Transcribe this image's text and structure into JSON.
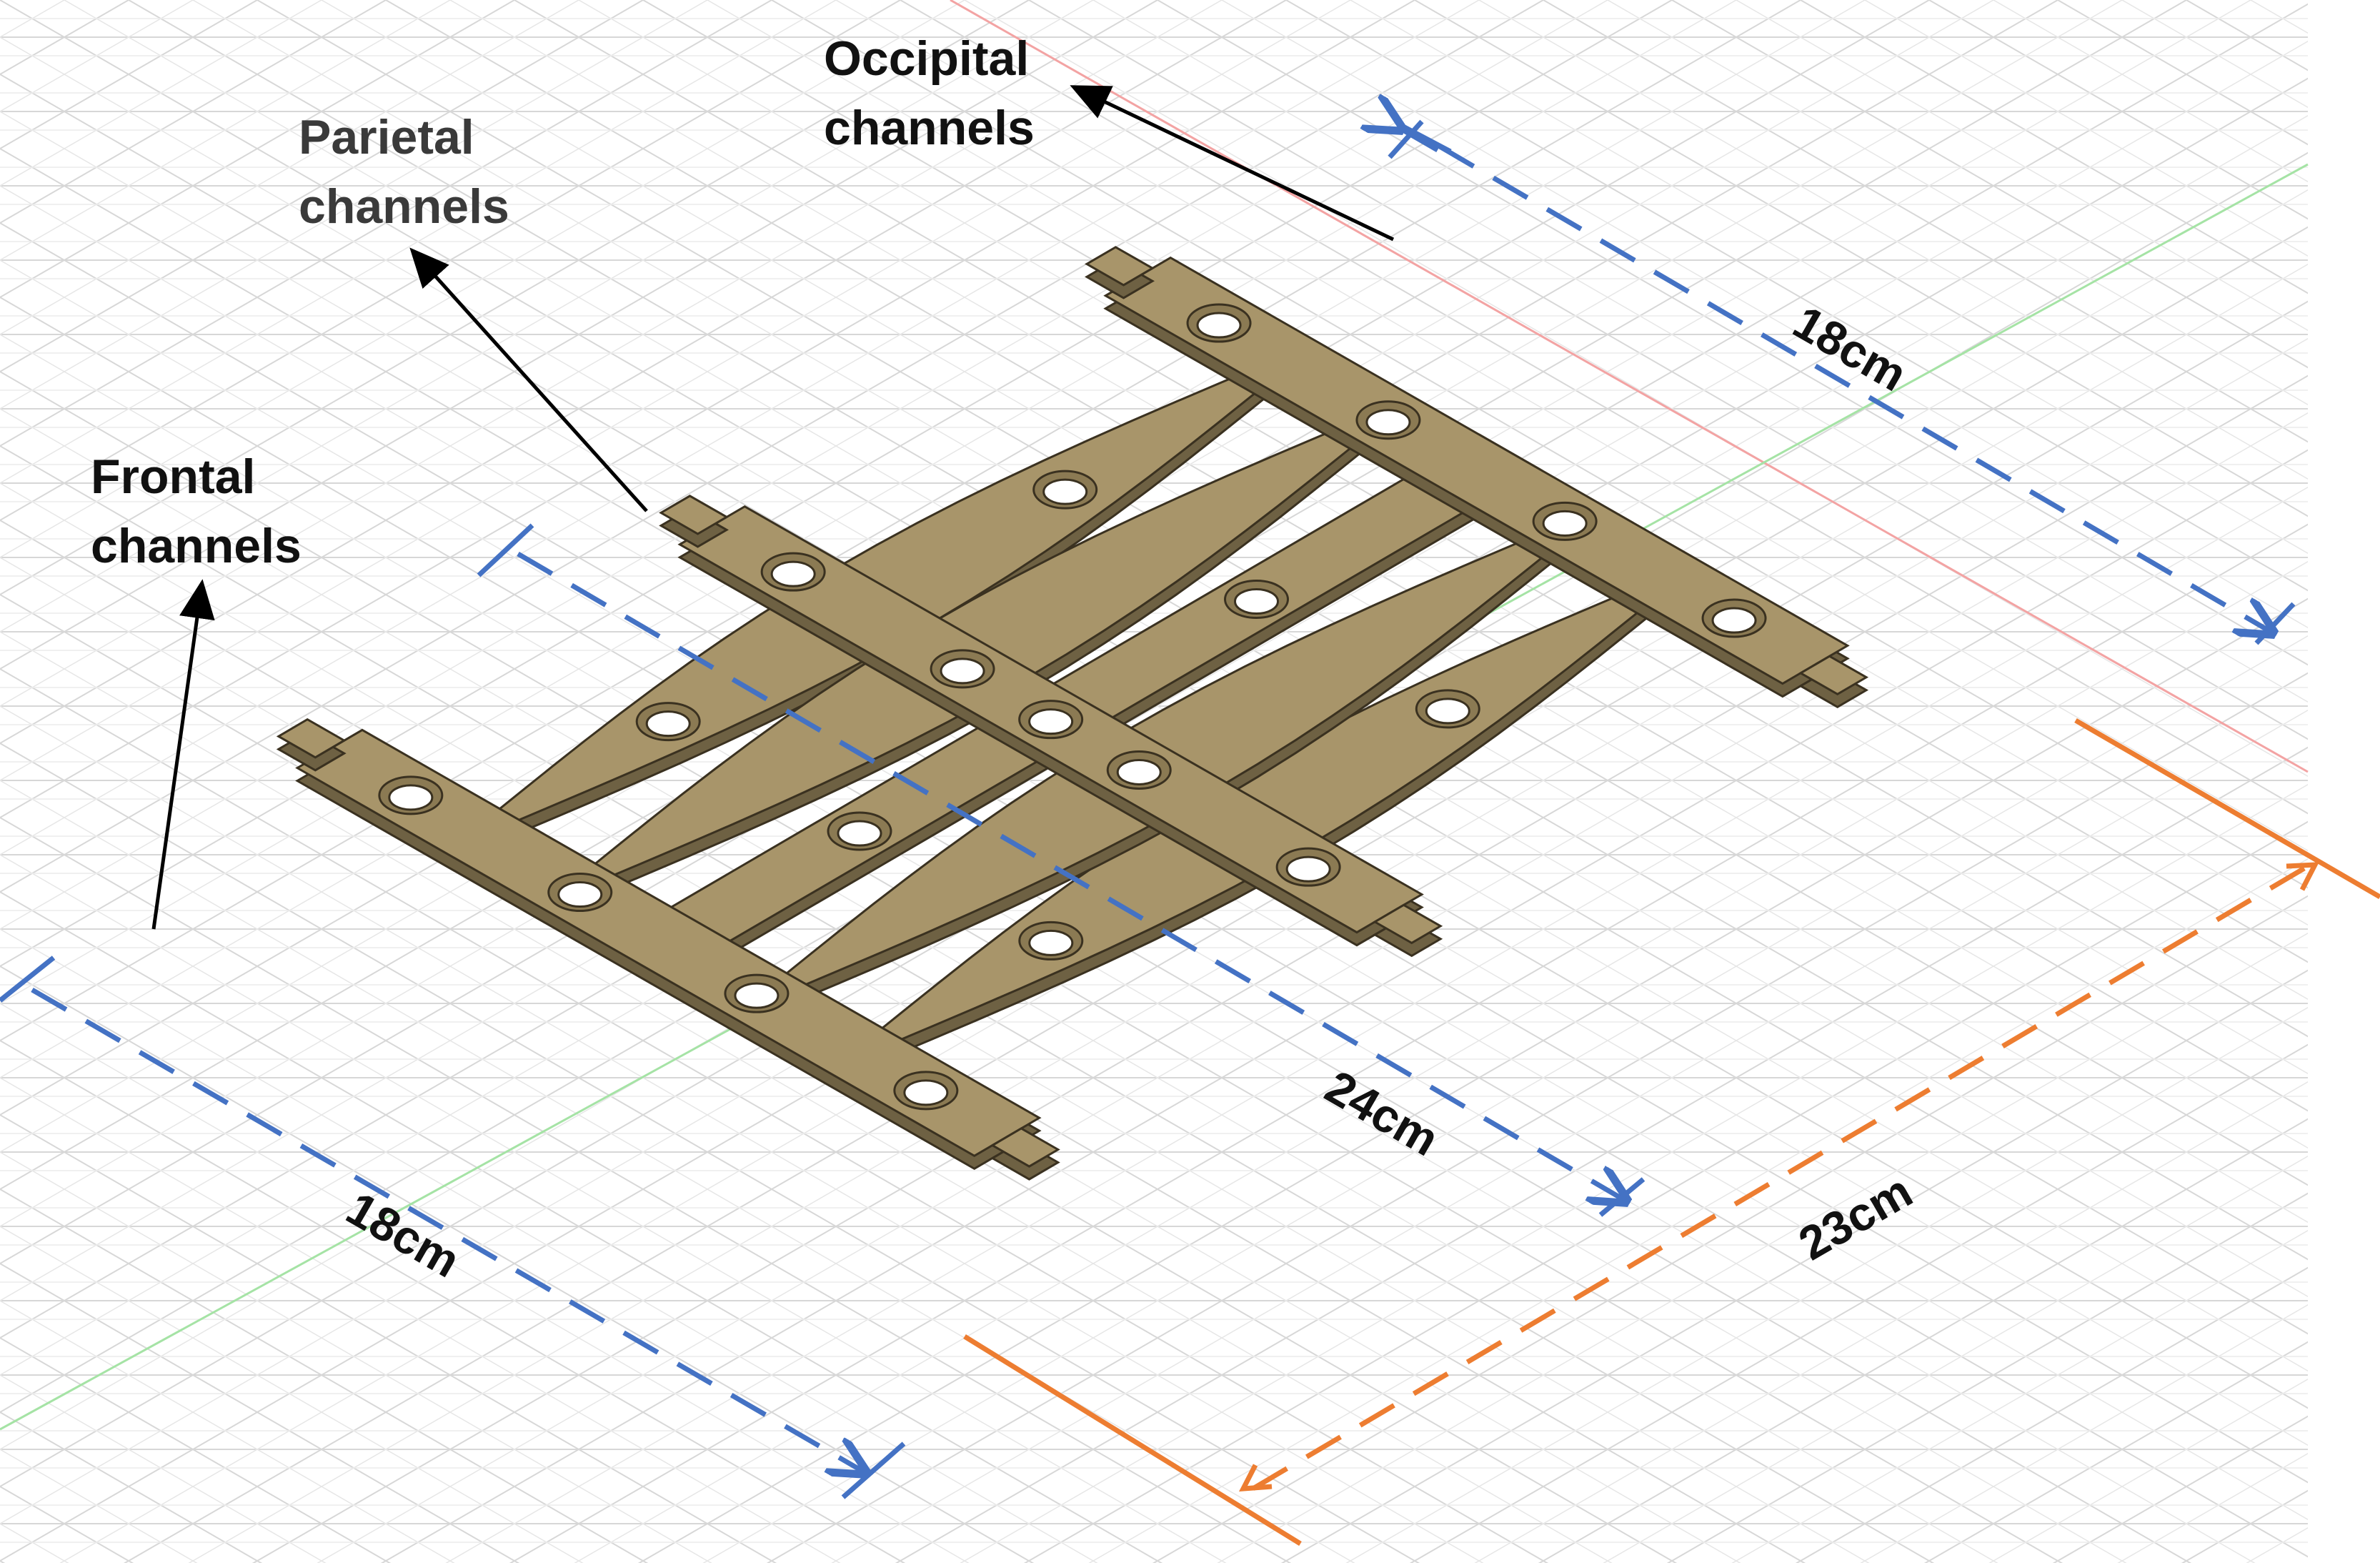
{
  "labels": {
    "occipital": [
      "Occipital",
      "channels"
    ],
    "parietal": [
      "Parietal",
      "channels"
    ],
    "frontal": [
      "Frontal",
      "channels"
    ]
  },
  "dimensions": {
    "occipital_width": "18cm",
    "frontal_width": "18cm",
    "length": "24cm",
    "overall": "23cm"
  },
  "colors": {
    "board_top": "#a8956a",
    "board_side": "#6e6143",
    "board_edge": "#3a3120",
    "grid": "#d4d4d4",
    "blue_dim": "#4472c4",
    "orange_dim": "#ed7d31",
    "axis_red": "#f2a2a2",
    "axis_green": "#9fe09f"
  }
}
